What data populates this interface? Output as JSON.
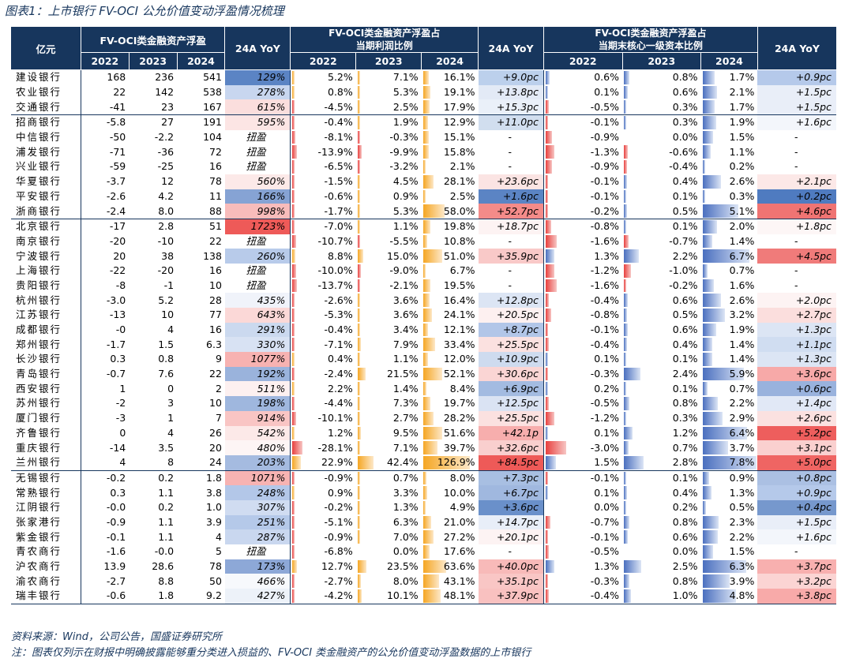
{
  "title": "图表1：上市银行 FV-OCI 公允价值变动浮盈情况梳理",
  "header": {
    "unit": "亿元",
    "g1": "FV-OCI类金融资产浮盈",
    "g2_l1": "FV-OCI类金融资产浮盈占",
    "g2_l2": "当期利润比例",
    "g3_l1": "FV-OCI类金融资产浮盈占",
    "g3_l2": "当期末核心一级资本比例",
    "yoy": "24A YoY",
    "y2022": "2022",
    "y2023": "2023",
    "y2024": "2024"
  },
  "colors": {
    "header": "#17365d",
    "neg": "#e8403e",
    "pos1": "#f5a623",
    "pos2": "#4a6fbf"
  },
  "rows": [
    {
      "name": "建设银行",
      "a": "168",
      "b": "236",
      "c": "541",
      "yoy": "129%",
      "yc": "#5b84c4",
      "p22": "5.2%",
      "p23": "7.1%",
      "p24": "16.1%",
      "n22": 5.2,
      "n23": 7.1,
      "n24": 16.1,
      "pyoy": "+9.0pc",
      "pc": "#bcd0ec",
      "k22": "0.6%",
      "k23": "0.8%",
      "k24": "1.7%",
      "m22": 0.6,
      "m23": 0.8,
      "m24": 1.7,
      "kyoy": "+0.9pc",
      "kc": "#b5c9ea"
    },
    {
      "name": "农业银行",
      "a": "22",
      "b": "142",
      "c": "538",
      "yoy": "278%",
      "yc": "#c8d6ef",
      "p22": "0.8%",
      "p23": "5.3%",
      "p24": "19.1%",
      "n22": 0.8,
      "n23": 5.3,
      "n24": 19.1,
      "pyoy": "+13.8pc",
      "pc": "#e3eaf6",
      "k22": "0.1%",
      "k23": "0.6%",
      "k24": "2.1%",
      "m22": 0.1,
      "m23": 0.6,
      "m24": 2.1,
      "kyoy": "+1.5pc",
      "kc": "#e9eef8"
    },
    {
      "name": "交通银行",
      "a": "-41",
      "b": "23",
      "c": "167",
      "yoy": "615%",
      "yc": "#fbdedd",
      "p22": "-4.5%",
      "p23": "2.5%",
      "p24": "17.9%",
      "n22": -4.5,
      "n23": 2.5,
      "n24": 17.9,
      "pyoy": "+15.3pc",
      "pc": "#eaf0f9",
      "k22": "-0.5%",
      "k23": "0.3%",
      "k24": "1.7%",
      "m22": -0.5,
      "m23": 0.3,
      "m24": 1.7,
      "kyoy": "+1.5pc",
      "kc": "#e9eef8",
      "end": true
    },
    {
      "name": "招商银行",
      "a": "-5.8",
      "b": "27",
      "c": "191",
      "yoy": "595%",
      "yc": "#fce5e4",
      "p22": "-0.4%",
      "p23": "1.9%",
      "p24": "12.9%",
      "n22": -0.4,
      "n23": 1.9,
      "n24": 12.9,
      "pyoy": "+11.0pc",
      "pc": "#d1deef",
      "k22": "-0.1%",
      "k23": "0.3%",
      "k24": "1.9%",
      "m22": -0.1,
      "m23": 0.3,
      "m24": 1.9,
      "kyoy": "+1.6pc",
      "kc": "#f3f6fb"
    },
    {
      "name": "中信银行",
      "a": "-50",
      "b": "-2.2",
      "c": "104",
      "yoy": "扭盈",
      "yc": "",
      "p22": "-8.1%",
      "p23": "-0.3%",
      "p24": "15.1%",
      "n22": -8.1,
      "n23": -0.3,
      "n24": 15.1,
      "pyoy": "-",
      "pc": "",
      "k22": "-0.9%",
      "k23": "0.0%",
      "k24": "1.5%",
      "m22": -0.9,
      "m23": 0.0,
      "m24": 1.5,
      "kyoy": "-",
      "kc": ""
    },
    {
      "name": "浦发银行",
      "a": "-71",
      "b": "-36",
      "c": "72",
      "yoy": "扭盈",
      "yc": "",
      "p22": "-13.9%",
      "p23": "-9.9%",
      "p24": "15.8%",
      "n22": -13.9,
      "n23": -9.9,
      "n24": 15.8,
      "pyoy": "-",
      "pc": "",
      "k22": "-1.3%",
      "k23": "-0.6%",
      "k24": "1.1%",
      "m22": -1.3,
      "m23": -0.6,
      "m24": 1.1,
      "kyoy": "-",
      "kc": ""
    },
    {
      "name": "兴业银行",
      "a": "-59",
      "b": "-25",
      "c": "16",
      "yoy": "扭盈",
      "yc": "",
      "p22": "-6.5%",
      "p23": "-3.2%",
      "p24": "2.1%",
      "n22": -6.5,
      "n23": -3.2,
      "n24": 2.1,
      "pyoy": "-",
      "pc": "",
      "k22": "-0.9%",
      "k23": "-0.4%",
      "k24": "0.2%",
      "m22": -0.9,
      "m23": -0.4,
      "m24": 0.2,
      "kyoy": "-",
      "kc": ""
    },
    {
      "name": "华夏银行",
      "a": "-3.7",
      "b": "12",
      "c": "78",
      "yoy": "560%",
      "yc": "#fce9e8",
      "p22": "-1.5%",
      "p23": "4.5%",
      "p24": "28.1%",
      "n22": -1.5,
      "n23": 4.5,
      "n24": 28.1,
      "pyoy": "+23.6pc",
      "pc": "#fbe4e3",
      "k22": "-0.1%",
      "k23": "0.4%",
      "k24": "2.6%",
      "m22": -0.1,
      "m23": 0.4,
      "m24": 2.6,
      "kyoy": "+2.1pc",
      "kc": "#fce8e7"
    },
    {
      "name": "平安银行",
      "a": "-2.6",
      "b": "4.2",
      "c": "11",
      "yoy": "166%",
      "yc": "#86a3d4",
      "p22": "-0.6%",
      "p23": "0.9%",
      "p24": "2.5%",
      "n22": -0.6,
      "n23": 0.9,
      "n24": 2.5,
      "pyoy": "+1.6pc",
      "pc": "#5b84c4",
      "k22": "-0.1%",
      "k23": "0.1%",
      "k24": "0.3%",
      "m22": -0.1,
      "m23": 0.1,
      "m24": 0.3,
      "kyoy": "+0.2pc",
      "kc": "#4f7bc0"
    },
    {
      "name": "浙商银行",
      "a": "-2.4",
      "b": "8.0",
      "c": "88",
      "yoy": "998%",
      "yc": "#f8bcbb",
      "p22": "-1.7%",
      "p23": "5.3%",
      "p24": "58.0%",
      "n22": -1.7,
      "n23": 5.3,
      "n24": 58.0,
      "pyoy": "+52.7pc",
      "pc": "#f48b89",
      "k22": "-0.2%",
      "k23": "0.5%",
      "k24": "5.1%",
      "m22": -0.2,
      "m23": 0.5,
      "m24": 5.1,
      "kyoy": "+4.6pc",
      "kc": "#f07473",
      "end": true
    },
    {
      "name": "北京银行",
      "a": "-17",
      "b": "2.8",
      "c": "51",
      "yoy": "1723%",
      "yc": "#ee5a58",
      "p22": "-7.0%",
      "p23": "1.1%",
      "p24": "19.8%",
      "n22": -7.0,
      "n23": 1.1,
      "n24": 19.8,
      "pyoy": "+18.7pc",
      "pc": "#fdf3f3",
      "k22": "-0.8%",
      "k23": "0.1%",
      "k24": "2.0%",
      "m22": -0.8,
      "m23": 0.1,
      "m24": 2.0,
      "kyoy": "+1.8pc",
      "kc": "#fdf6f6"
    },
    {
      "name": "南京银行",
      "a": "-20",
      "b": "-10",
      "c": "22",
      "yoy": "扭盈",
      "yc": "",
      "p22": "-10.7%",
      "p23": "-5.5%",
      "p24": "10.8%",
      "n22": -10.7,
      "n23": -5.5,
      "n24": 10.8,
      "pyoy": "-",
      "pc": "",
      "k22": "-1.6%",
      "k23": "-0.7%",
      "k24": "1.4%",
      "m22": -1.6,
      "m23": -0.7,
      "m24": 1.4,
      "kyoy": "-",
      "kc": ""
    },
    {
      "name": "宁波银行",
      "a": "20",
      "b": "38",
      "c": "138",
      "yoy": "260%",
      "yc": "#b8cbea",
      "p22": "8.8%",
      "p23": "15.0%",
      "p24": "51.0%",
      "n22": 8.8,
      "n23": 15.0,
      "n24": 51.0,
      "pyoy": "+35.9pc",
      "pc": "#f9c9c8",
      "k22": "1.3%",
      "k23": "2.2%",
      "k24": "6.7%",
      "m22": 1.3,
      "m23": 2.2,
      "m24": 6.7,
      "kyoy": "+4.5pc",
      "kc": "#f07b7a"
    },
    {
      "name": "上海银行",
      "a": "-22",
      "b": "-20",
      "c": "16",
      "yoy": "扭盈",
      "yc": "",
      "p22": "-10.0%",
      "p23": "-9.0%",
      "p24": "6.7%",
      "n22": -10.0,
      "n23": -9.0,
      "n24": 6.7,
      "pyoy": "-",
      "pc": "",
      "k22": "-1.2%",
      "k23": "-1.0%",
      "k24": "0.7%",
      "m22": -1.2,
      "m23": -1.0,
      "m24": 0.7,
      "kyoy": "-",
      "kc": ""
    },
    {
      "name": "贵阳银行",
      "a": "-8",
      "b": "-1",
      "c": "10",
      "yoy": "扭盈",
      "yc": "",
      "p22": "-13.7%",
      "p23": "-2.1%",
      "p24": "19.5%",
      "n22": -13.7,
      "n23": -2.1,
      "n24": 19.5,
      "pyoy": "-",
      "pc": "",
      "k22": "-1.6%",
      "k23": "-0.2%",
      "k24": "1.6%",
      "m22": -1.6,
      "m23": -0.2,
      "m24": 1.6,
      "kyoy": "-",
      "kc": ""
    },
    {
      "name": "杭州银行",
      "a": "-3.0",
      "b": "5.2",
      "c": "28",
      "yoy": "435%",
      "yc": "#f0f3fa",
      "p22": "-2.6%",
      "p23": "3.6%",
      "p24": "16.4%",
      "n22": -2.6,
      "n23": 3.6,
      "n24": 16.4,
      "pyoy": "+12.8pc",
      "pc": "#dce5f4",
      "k22": "-0.4%",
      "k23": "0.6%",
      "k24": "2.6%",
      "m22": -0.4,
      "m23": 0.6,
      "m24": 2.6,
      "kyoy": "+2.0pc",
      "kc": "#fdf3f3"
    },
    {
      "name": "江苏银行",
      "a": "-13",
      "b": "10",
      "c": "77",
      "yoy": "643%",
      "yc": "#fbd8d7",
      "p22": "-5.3%",
      "p23": "3.6%",
      "p24": "24.1%",
      "n22": -5.3,
      "n23": 3.6,
      "n24": 24.1,
      "pyoy": "+20.5pc",
      "pc": "#fdf0f0",
      "k22": "-0.8%",
      "k23": "0.5%",
      "k24": "3.2%",
      "m22": -0.8,
      "m23": 0.5,
      "m24": 3.2,
      "kyoy": "+2.7pc",
      "kc": "#fbdedd"
    },
    {
      "name": "成都银行",
      "a": "-0",
      "b": "4",
      "c": "16",
      "yoy": "291%",
      "yc": "#cbd9ef",
      "p22": "-0.4%",
      "p23": "3.4%",
      "p24": "12.1%",
      "n22": -0.4,
      "n23": 3.4,
      "n24": 12.1,
      "pyoy": "+8.7pc",
      "pc": "#b2c6e8",
      "k22": "-0.1%",
      "k23": "0.6%",
      "k24": "1.9%",
      "m22": -0.1,
      "m23": 0.6,
      "m24": 1.9,
      "kyoy": "+1.3pc",
      "kc": "#dce5f4"
    },
    {
      "name": "郑州银行",
      "a": "-1.7",
      "b": "1.5",
      "c": "6.3",
      "yoy": "330%",
      "yc": "#d8e2f3",
      "p22": "-7.1%",
      "p23": "7.9%",
      "p24": "33.4%",
      "n22": -7.1,
      "n23": 7.9,
      "n24": 33.4,
      "pyoy": "+25.5pc",
      "pc": "#fbe1e0",
      "k22": "-0.4%",
      "k23": "0.4%",
      "k24": "1.4%",
      "m22": -0.4,
      "m23": 0.4,
      "m24": 1.4,
      "kyoy": "+1.1pc",
      "kc": "#d0ddf1"
    },
    {
      "name": "长沙银行",
      "a": "0.3",
      "b": "0.8",
      "c": "9",
      "yoy": "1077%",
      "yc": "#f7b2b1",
      "p22": "0.4%",
      "p23": "1.1%",
      "p24": "12.0%",
      "n22": 0.4,
      "n23": 1.1,
      "n24": 12.0,
      "pyoy": "+10.9pc",
      "pc": "#cedbef",
      "k22": "0.1%",
      "k23": "0.1%",
      "k24": "1.4%",
      "m22": 0.1,
      "m23": 0.1,
      "m24": 1.4,
      "kyoy": "+1.3pc",
      "kc": "#dce5f4"
    },
    {
      "name": "青岛银行",
      "a": "-0.7",
      "b": "7.6",
      "c": "22",
      "yoy": "192%",
      "yc": "#9ab3dc",
      "p22": "-2.4%",
      "p23": "21.5%",
      "p24": "52.1%",
      "n22": -2.4,
      "n23": 21.5,
      "n24": 52.1,
      "pyoy": "+30.6pc",
      "pc": "#fad5d4",
      "k22": "-0.3%",
      "k23": "2.4%",
      "k24": "5.9%",
      "m22": -0.3,
      "m23": 2.4,
      "m24": 5.9,
      "kyoy": "+3.6pc",
      "kc": "#f7a9a8"
    },
    {
      "name": "西安银行",
      "a": "1",
      "b": "0",
      "c": "2",
      "yoy": "511%",
      "yc": "#fdf0f0",
      "p22": "2.2%",
      "p23": "1.4%",
      "p24": "8.4%",
      "n22": 2.2,
      "n23": 1.4,
      "n24": 8.4,
      "pyoy": "+6.9pc",
      "pc": "#a3bbe1",
      "k22": "0.2%",
      "k23": "0.1%",
      "k24": "0.7%",
      "m22": 0.2,
      "m23": 0.1,
      "m24": 0.7,
      "kyoy": "+0.6pc",
      "kc": "#99b2dd"
    },
    {
      "name": "苏州银行",
      "a": "-2",
      "b": "3",
      "c": "10",
      "yoy": "198%",
      "yc": "#9fb7de",
      "p22": "-4.4%",
      "p23": "7.3%",
      "p24": "19.7%",
      "n22": -4.4,
      "n23": 7.3,
      "n24": 19.7,
      "pyoy": "+12.5pc",
      "pc": "#dae3f3",
      "k22": "-0.5%",
      "k23": "0.8%",
      "k24": "2.2%",
      "m22": -0.5,
      "m23": 0.8,
      "m24": 2.2,
      "kyoy": "+1.4pc",
      "kc": "#e1e8f6"
    },
    {
      "name": "厦门银行",
      "a": "-3",
      "b": "1",
      "c": "7",
      "yoy": "914%",
      "yc": "#f9c5c4",
      "p22": "-10.1%",
      "p23": "2.7%",
      "p24": "28.2%",
      "n22": -10.1,
      "n23": 2.7,
      "n24": 28.2,
      "pyoy": "+25.5pc",
      "pc": "#fbe1e0",
      "k22": "-1.2%",
      "k23": "0.3%",
      "k24": "2.9%",
      "m22": -1.2,
      "m23": 0.3,
      "m24": 2.9,
      "kyoy": "+2.6pc",
      "kc": "#fbe1e0"
    },
    {
      "name": "齐鲁银行",
      "a": "0",
      "b": "4",
      "c": "26",
      "yoy": "542%",
      "yc": "#fce9e8",
      "p22": "1.2%",
      "p23": "9.5%",
      "p24": "51.6%",
      "n22": 1.2,
      "n23": 9.5,
      "n24": 51.6,
      "pyoy": "+42.1p",
      "pc": "#f7aead",
      "k22": "0.1%",
      "k23": "1.2%",
      "k24": "6.4%",
      "m22": 0.1,
      "m23": 1.2,
      "m24": 6.4,
      "kyoy": "+5.2pc",
      "kc": "#ee5e5d"
    },
    {
      "name": "重庆银行",
      "a": "-14",
      "b": "3.5",
      "c": "20",
      "yoy": "480%",
      "yc": "#fdf5f5",
      "p22": "-28.1%",
      "p23": "7.1%",
      "p24": "39.7%",
      "n22": -28.1,
      "n23": 7.1,
      "n24": 39.7,
      "pyoy": "+32.6pc",
      "pc": "#f9cfce",
      "k22": "-3.0%",
      "k23": "0.7%",
      "k24": "3.7%",
      "m22": -3.0,
      "m23": 0.7,
      "m24": 3.7,
      "kyoy": "+3.1pc",
      "kc": "#fad0cf"
    },
    {
      "name": "兰州银行",
      "a": "4",
      "b": "8",
      "c": "24",
      "yoy": "203%",
      "yc": "#a5bbe0",
      "p22": "22.9%",
      "p23": "42.4%",
      "p24": "126.9%",
      "n22": 22.9,
      "n23": 42.4,
      "n24": 126.9,
      "pyoy": "+84.5pc",
      "pc": "#ee5a58",
      "k22": "1.5%",
      "k23": "2.8%",
      "k24": "7.8%",
      "m22": 1.5,
      "m23": 2.8,
      "m24": 7.8,
      "kyoy": "+5.0pc",
      "kc": "#ef6563",
      "end": true
    },
    {
      "name": "无锡银行",
      "a": "-0.2",
      "b": "0.2",
      "c": "1.8",
      "yoy": "1071%",
      "yc": "#f7b3b2",
      "p22": "-0.9%",
      "p23": "0.7%",
      "p24": "8.0%",
      "n22": -0.9,
      "n23": 0.7,
      "n24": 8.0,
      "pyoy": "+7.3pc",
      "pc": "#a8bfe2",
      "k22": "-0.1%",
      "k23": "0.1%",
      "k24": "0.9%",
      "m22": -0.1,
      "m23": 0.1,
      "m24": 0.9,
      "kyoy": "+0.8pc",
      "kc": "#abc0e3"
    },
    {
      "name": "常熟银行",
      "a": "0.3",
      "b": "1.1",
      "c": "3.8",
      "yoy": "248%",
      "yc": "#b3c7e8",
      "p22": "0.9%",
      "p23": "3.3%",
      "p24": "10.0%",
      "n22": 0.9,
      "n23": 3.3,
      "n24": 10.0,
      "pyoy": "+6.7pc",
      "pc": "#a0b8df",
      "k22": "0.1%",
      "k23": "0.4%",
      "k24": "1.3%",
      "m22": 0.1,
      "m23": 0.4,
      "m24": 1.3,
      "kyoy": "+0.9pc",
      "kc": "#b5c9ea"
    },
    {
      "name": "江阴银行",
      "a": "-0.0",
      "b": "0.2",
      "c": "1.0",
      "yoy": "307%",
      "yc": "#d0dcf1",
      "p22": "-0.2%",
      "p23": "1.3%",
      "p24": "4.9%",
      "n22": -0.2,
      "n23": 1.3,
      "n24": 4.9,
      "pyoy": "+3.6pc",
      "pc": "#6a90ca",
      "k22": "0.0%",
      "k23": "0.2%",
      "k24": "0.5%",
      "m22": 0.0,
      "m23": 0.2,
      "m24": 0.5,
      "kyoy": "+0.4pc",
      "kc": "#7698cd"
    },
    {
      "name": "张家港行",
      "a": "-0.9",
      "b": "1.1",
      "c": "3.9",
      "yoy": "251%",
      "yc": "#b5c9e9",
      "p22": "-5.1%",
      "p23": "6.3%",
      "p24": "21.0%",
      "n22": -5.1,
      "n23": 6.3,
      "n24": 21.0,
      "pyoy": "+14.7pc",
      "pc": "#e8eef8",
      "k22": "-0.7%",
      "k23": "0.8%",
      "k24": "2.3%",
      "m22": -0.7,
      "m23": 0.8,
      "m24": 2.3,
      "kyoy": "+1.5pc",
      "kc": "#e9eef8"
    },
    {
      "name": "紫金银行",
      "a": "-0.1",
      "b": "1.1",
      "c": "4",
      "yoy": "287%",
      "yc": "#c9d7ef",
      "p22": "-0.9%",
      "p23": "7.0%",
      "p24": "27.2%",
      "n22": -0.9,
      "n23": 7.0,
      "n24": 27.2,
      "pyoy": "+20.1pc",
      "pc": "#fdf3f3",
      "k22": "-0.1%",
      "k23": "0.6%",
      "k24": "2.2%",
      "m22": -0.1,
      "m23": 0.6,
      "m24": 2.2,
      "kyoy": "+1.6pc",
      "kc": "#f3f6fb"
    },
    {
      "name": "青农商行",
      "a": "-1.6",
      "b": "-0.0",
      "c": "5",
      "yoy": "扭盈",
      "yc": "",
      "p22": "-6.8%",
      "p23": "0.0%",
      "p24": "17.6%",
      "n22": -6.8,
      "n23": 0.0,
      "n24": 17.6,
      "pyoy": "-",
      "pc": "",
      "k22": "-0.5%",
      "k23": "0.0%",
      "k24": "1.5%",
      "m22": -0.5,
      "m23": 0.0,
      "m24": 1.5,
      "kyoy": "-",
      "kc": ""
    },
    {
      "name": "沪农商行",
      "a": "13.9",
      "b": "28.6",
      "c": "78",
      "yoy": "173%",
      "yc": "#8da8d7",
      "p22": "12.7%",
      "p23": "23.5%",
      "p24": "63.6%",
      "n22": 12.7,
      "n23": 23.5,
      "n24": 63.6,
      "pyoy": "+40.0pc",
      "pc": "#f8bab9",
      "k22": "1.3%",
      "k23": "2.5%",
      "k24": "6.3%",
      "m22": 1.3,
      "m23": 2.5,
      "m24": 6.3,
      "kyoy": "+3.7pc",
      "kc": "#f8b0af"
    },
    {
      "name": "渝农商行",
      "a": "-2.7",
      "b": "8.8",
      "c": "50",
      "yoy": "466%",
      "yc": "#f7f9fc",
      "p22": "-2.7%",
      "p23": "8.0%",
      "p24": "43.1%",
      "n22": -2.7,
      "n23": 8.0,
      "n24": 43.1,
      "pyoy": "+35.1pc",
      "pc": "#f9c6c5",
      "k22": "-0.3%",
      "k23": "0.8%",
      "k24": "3.9%",
      "m22": -0.3,
      "m23": 0.8,
      "m24": 3.9,
      "kyoy": "+3.2pc",
      "kc": "#fbd4d3"
    },
    {
      "name": "瑞丰银行",
      "a": "-0.6",
      "b": "1.8",
      "c": "9.2",
      "yoy": "427%",
      "yc": "#edf2f9",
      "p22": "-4.2%",
      "p23": "10.1%",
      "p24": "48.1%",
      "n22": -4.2,
      "n23": 10.1,
      "n24": 48.1,
      "pyoy": "+37.9pc",
      "pc": "#f9c1c0",
      "k22": "-0.4%",
      "k23": "1.0%",
      "k24": "4.8%",
      "m22": -0.4,
      "m23": 1.0,
      "m24": 4.8,
      "kyoy": "+3.8pc",
      "kc": "#f8aaa9"
    }
  ],
  "footer": {
    "source": "资料来源：Wind，公司公告，国盛证券研究所",
    "note": "注：图表仅列示在财报中明确披露能够重分类进入损益的、FV-OCI 类金融资产的公允价值变动浮盈数据的上市银行"
  }
}
